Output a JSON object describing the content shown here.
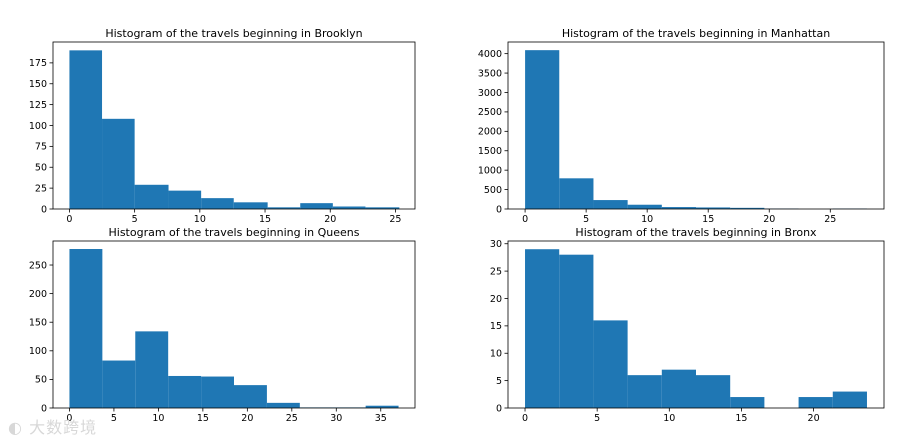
{
  "chart_data": [
    {
      "type": "bar",
      "title": "Histogram of the travels beginning in Brooklyn",
      "xlabel": "",
      "ylabel": "",
      "color": "#1f77b4",
      "bin_edges": [
        0,
        2.5,
        5,
        7.6,
        10.1,
        12.6,
        15.2,
        17.7,
        20.2,
        22.7,
        25.3
      ],
      "values": [
        190,
        108,
        29,
        22,
        13,
        8,
        2,
        7,
        3,
        2
      ],
      "xlim": [
        -1.26,
        26.5
      ],
      "ylim": [
        0,
        200
      ],
      "xticks": [
        0,
        5,
        10,
        15,
        20,
        25
      ],
      "xtick_labels": [
        "0",
        "5",
        "10",
        "15",
        "20",
        "25"
      ],
      "yticks": [
        0,
        25,
        50,
        75,
        100,
        125,
        150,
        175
      ],
      "ytick_labels": [
        "0",
        "25",
        "50",
        "75",
        "100",
        "125",
        "150",
        "175"
      ]
    },
    {
      "type": "bar",
      "title": "Histogram of the travels beginning in Manhattan",
      "xlabel": "",
      "ylabel": "",
      "color": "#1f77b4",
      "bin_edges": [
        0,
        2.8,
        5.6,
        8.4,
        11.2,
        14.0,
        16.8,
        19.6,
        22.4,
        25.2,
        28.0
      ],
      "values": [
        4090,
        790,
        230,
        110,
        50,
        40,
        30,
        10,
        0,
        10
      ],
      "xlim": [
        -1.4,
        29.4
      ],
      "ylim": [
        0,
        4300
      ],
      "xticks": [
        0,
        5,
        10,
        15,
        20,
        25
      ],
      "xtick_labels": [
        "0",
        "5",
        "10",
        "15",
        "20",
        "25"
      ],
      "yticks": [
        0,
        500,
        1000,
        1500,
        2000,
        2500,
        3000,
        3500,
        4000
      ],
      "ytick_labels": [
        "0",
        "500",
        "1000",
        "1500",
        "2000",
        "2500",
        "3000",
        "3500",
        "4000"
      ]
    },
    {
      "type": "bar",
      "title": "Histogram of the travels beginning in Queens",
      "xlabel": "",
      "ylabel": "",
      "color": "#1f77b4",
      "bin_edges": [
        0,
        3.7,
        7.4,
        11.1,
        14.8,
        18.5,
        22.2,
        25.9,
        29.6,
        33.3,
        37.0
      ],
      "values": [
        278,
        83,
        134,
        56,
        55,
        40,
        9,
        1,
        1,
        4
      ],
      "xlim": [
        -1.85,
        38.85
      ],
      "ylim": [
        0,
        292
      ],
      "xticks": [
        0,
        5,
        10,
        15,
        20,
        25,
        30,
        35
      ],
      "xtick_labels": [
        "0",
        "5",
        "10",
        "15",
        "20",
        "25",
        "30",
        "35"
      ],
      "yticks": [
        0,
        50,
        100,
        150,
        200,
        250
      ],
      "ytick_labels": [
        "0",
        "50",
        "100",
        "150",
        "200",
        "250"
      ]
    },
    {
      "type": "bar",
      "title": "Histogram of the travels beginning in Bronx",
      "xlabel": "",
      "ylabel": "",
      "color": "#1f77b4",
      "bin_edges": [
        0,
        2.37,
        4.74,
        7.11,
        9.48,
        11.85,
        14.22,
        16.59,
        18.96,
        21.33,
        23.7
      ],
      "values": [
        29,
        28,
        16,
        6,
        7,
        6,
        2,
        0,
        2,
        3
      ],
      "xlim": [
        -1.18,
        24.88
      ],
      "ylim": [
        0,
        30.5
      ],
      "xticks": [
        0,
        5,
        10,
        15,
        20
      ],
      "xtick_labels": [
        "0",
        "5",
        "10",
        "15",
        "20"
      ],
      "yticks": [
        0,
        5,
        10,
        15,
        20,
        25,
        30
      ],
      "ytick_labels": [
        "0",
        "5",
        "10",
        "15",
        "20",
        "25",
        "30"
      ]
    }
  ],
  "watermark": "大数跨境"
}
